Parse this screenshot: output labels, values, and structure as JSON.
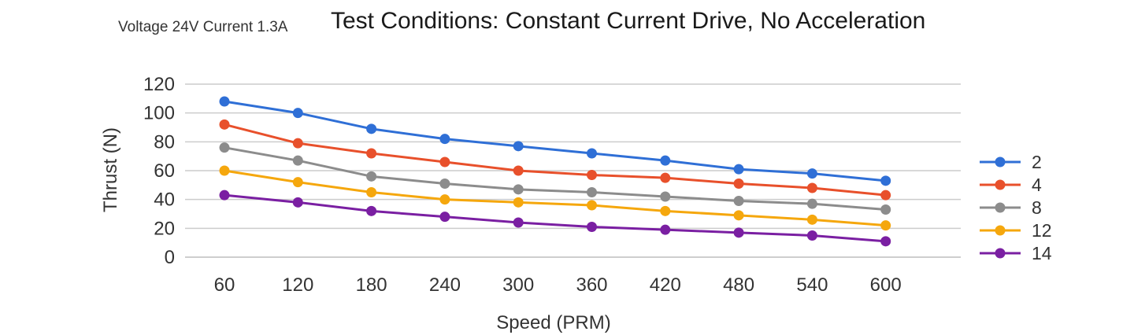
{
  "chart_data": {
    "type": "line",
    "title": "Test Conditions: Constant Current Drive, No Acceleration",
    "subtitle": "Voltage 24V Current 1.3A",
    "xlabel": "Speed (PRM)",
    "ylabel": "Thrust (N)",
    "categories": [
      "60",
      "120",
      "180",
      "240",
      "300",
      "360",
      "420",
      "480",
      "540",
      "600"
    ],
    "ylim": [
      0,
      120
    ],
    "yticks": [
      0,
      20,
      40,
      60,
      80,
      100,
      120
    ],
    "grid": true,
    "legend_position": "right",
    "series": [
      {
        "name": "2",
        "color": "#2f6fd6",
        "values": [
          108,
          100,
          89,
          82,
          77,
          72,
          67,
          61,
          58,
          53
        ]
      },
      {
        "name": "4",
        "color": "#e8502b",
        "values": [
          92,
          79,
          72,
          66,
          60,
          57,
          55,
          51,
          48,
          43
        ]
      },
      {
        "name": "8",
        "color": "#8c8c8c",
        "values": [
          76,
          67,
          56,
          51,
          47,
          45,
          42,
          39,
          37,
          33
        ]
      },
      {
        "name": "12",
        "color": "#f5a70d",
        "values": [
          60,
          52,
          45,
          40,
          38,
          36,
          32,
          29,
          26,
          22
        ]
      },
      {
        "name": "14",
        "color": "#7a1fa2",
        "values": [
          43,
          38,
          32,
          28,
          24,
          21,
          19,
          17,
          15,
          11
        ]
      }
    ]
  }
}
